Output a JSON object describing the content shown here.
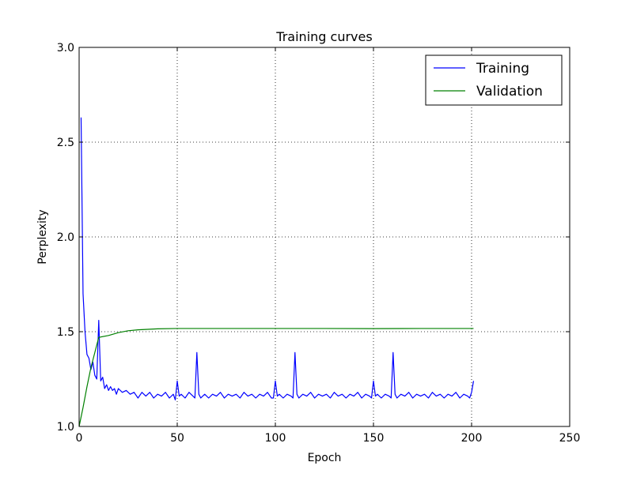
{
  "chart_data": {
    "type": "line",
    "title": "Training curves",
    "xlabel": "Epoch",
    "ylabel": "Perplexity",
    "xlim": [
      0,
      250
    ],
    "ylim": [
      1.0,
      3.0
    ],
    "xticks": [
      0,
      50,
      100,
      150,
      200,
      250
    ],
    "yticks": [
      1.0,
      1.5,
      2.0,
      2.5,
      3.0
    ],
    "xtick_labels": [
      "0",
      "50",
      "100",
      "150",
      "200",
      "250"
    ],
    "ytick_labels": [
      "1.0",
      "1.5",
      "2.0",
      "2.5",
      "3.0"
    ],
    "grid": true,
    "legend_position": "top-right",
    "series": [
      {
        "name": "Training",
        "color": "#0000ff",
        "x": [
          1,
          2,
          3,
          4,
          5,
          6,
          7,
          8,
          9,
          10,
          11,
          12,
          13,
          14,
          15,
          16,
          17,
          18,
          19,
          20,
          22,
          24,
          26,
          28,
          30,
          32,
          34,
          36,
          38,
          40,
          42,
          44,
          46,
          48,
          49,
          50,
          51,
          52,
          54,
          56,
          58,
          59,
          60,
          61,
          62,
          64,
          66,
          68,
          70,
          72,
          74,
          76,
          78,
          80,
          82,
          84,
          86,
          88,
          90,
          92,
          94,
          96,
          98,
          99,
          100,
          101,
          102,
          104,
          106,
          108,
          109,
          110,
          111,
          112,
          114,
          116,
          118,
          120,
          122,
          124,
          126,
          128,
          130,
          132,
          134,
          136,
          138,
          140,
          142,
          144,
          146,
          148,
          149,
          150,
          151,
          152,
          154,
          156,
          158,
          159,
          160,
          161,
          162,
          164,
          166,
          168,
          170,
          172,
          174,
          176,
          178,
          180,
          182,
          184,
          186,
          188,
          190,
          192,
          194,
          196,
          198,
          199,
          200,
          201
        ],
        "values": [
          2.63,
          1.7,
          1.5,
          1.38,
          1.36,
          1.3,
          1.34,
          1.27,
          1.25,
          1.56,
          1.24,
          1.26,
          1.2,
          1.22,
          1.19,
          1.21,
          1.19,
          1.2,
          1.17,
          1.2,
          1.18,
          1.19,
          1.17,
          1.18,
          1.15,
          1.18,
          1.16,
          1.18,
          1.15,
          1.17,
          1.16,
          1.18,
          1.15,
          1.17,
          1.14,
          1.24,
          1.16,
          1.17,
          1.15,
          1.18,
          1.16,
          1.15,
          1.39,
          1.17,
          1.15,
          1.17,
          1.15,
          1.17,
          1.16,
          1.18,
          1.15,
          1.17,
          1.16,
          1.17,
          1.15,
          1.18,
          1.16,
          1.17,
          1.15,
          1.17,
          1.16,
          1.18,
          1.15,
          1.15,
          1.24,
          1.16,
          1.17,
          1.15,
          1.17,
          1.16,
          1.15,
          1.39,
          1.17,
          1.15,
          1.17,
          1.16,
          1.18,
          1.15,
          1.17,
          1.16,
          1.17,
          1.15,
          1.18,
          1.16,
          1.17,
          1.15,
          1.17,
          1.16,
          1.18,
          1.15,
          1.17,
          1.16,
          1.15,
          1.24,
          1.16,
          1.17,
          1.15,
          1.17,
          1.16,
          1.15,
          1.39,
          1.17,
          1.15,
          1.17,
          1.16,
          1.18,
          1.15,
          1.17,
          1.16,
          1.17,
          1.15,
          1.18,
          1.16,
          1.17,
          1.15,
          1.17,
          1.16,
          1.18,
          1.15,
          1.17,
          1.16,
          1.15,
          1.18,
          1.24
        ]
      },
      {
        "name": "Validation",
        "color": "#008000",
        "x": [
          0,
          2,
          4,
          6,
          8,
          10,
          15,
          20,
          25,
          30,
          40,
          50,
          75,
          100,
          125,
          150,
          175,
          200,
          201
        ],
        "values": [
          1.0,
          1.1,
          1.21,
          1.31,
          1.39,
          1.47,
          1.48,
          1.495,
          1.505,
          1.51,
          1.515,
          1.517,
          1.517,
          1.517,
          1.517,
          1.516,
          1.517,
          1.517,
          1.517
        ]
      }
    ]
  }
}
